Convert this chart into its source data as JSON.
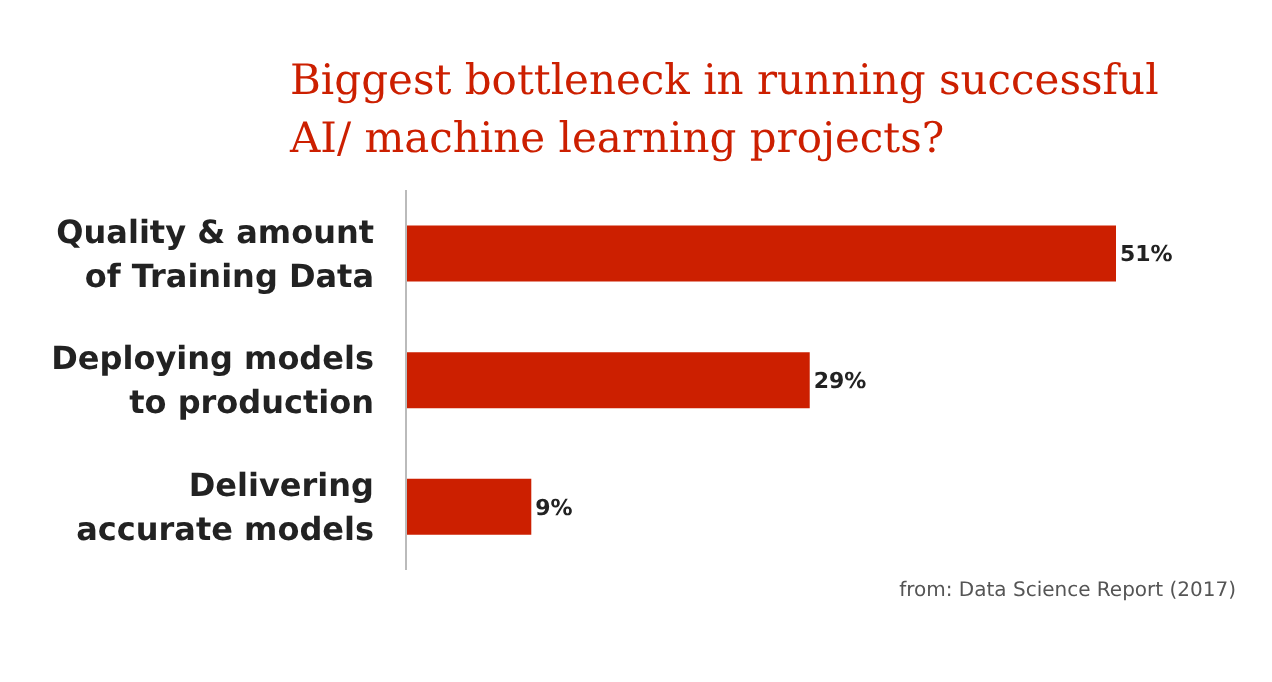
{
  "chart_data": {
    "type": "bar",
    "orientation": "horizontal",
    "title": "Biggest bottleneck in running successful AI/ machine learning projects?",
    "categories": [
      "Quality & amount of Training Data",
      "Deploying models to production",
      "Delivering accurate models"
    ],
    "values": [
      51,
      29,
      9
    ],
    "value_labels": [
      "51%",
      "29%",
      "9%"
    ],
    "color": "#cc1f00",
    "annotations": [
      "from: Data Science Report (2017)"
    ]
  }
}
